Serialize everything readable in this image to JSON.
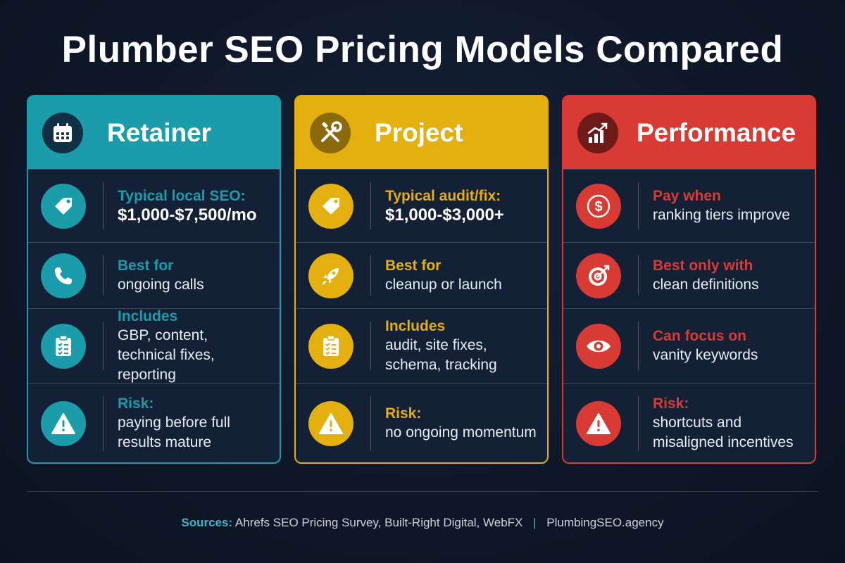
{
  "title": "Plumber SEO Pricing Models Compared",
  "colors": {
    "retainer": "#1a9cab",
    "project": "#e3b00f",
    "performance": "#d83a34",
    "background": "#0f1829"
  },
  "cards": [
    {
      "name": "Retainer",
      "icon": "calendar-icon",
      "rows": [
        {
          "icon": "price-tag-icon",
          "label": "Typical local SEO:",
          "value": "$1,000-$7,500/mo"
        },
        {
          "icon": "phone-icon",
          "label": "Best for",
          "value": "ongoing calls"
        },
        {
          "icon": "clipboard-checklist-icon",
          "label": "Includes",
          "value": "GBP, content, technical fixes, reporting"
        },
        {
          "icon": "warning-icon",
          "label": "Risk:",
          "value": "paying before full results mature"
        }
      ]
    },
    {
      "name": "Project",
      "icon": "wrench-screwdriver-icon",
      "rows": [
        {
          "icon": "price-tag-icon",
          "label": "Typical audit/fix:",
          "value": "$1,000-$3,000+"
        },
        {
          "icon": "rocket-icon",
          "label": "Best for",
          "value": "cleanup or launch"
        },
        {
          "icon": "clipboard-checklist-icon",
          "label": "Includes",
          "value": "audit, site fixes, schema, tracking"
        },
        {
          "icon": "warning-icon",
          "label": "Risk:",
          "value": "no ongoing momentum"
        }
      ]
    },
    {
      "name": "Performance",
      "icon": "growth-chart-icon",
      "rows": [
        {
          "icon": "dollar-coin-icon",
          "label": "Pay when",
          "value": "ranking tiers improve"
        },
        {
          "icon": "target-icon",
          "label": "Best only with",
          "value": "clean definitions"
        },
        {
          "icon": "eye-icon",
          "label": "Can focus on",
          "value": "vanity keywords"
        },
        {
          "icon": "warning-icon",
          "label": "Risk:",
          "value": "shortcuts and misaligned incentives"
        }
      ]
    }
  ],
  "footer": {
    "sources_label": "Sources:",
    "sources": "Ahrefs SEO Pricing Survey, Built-Right Digital, WebFX",
    "separator": "|",
    "site": "PlumbingSEO.agency"
  }
}
